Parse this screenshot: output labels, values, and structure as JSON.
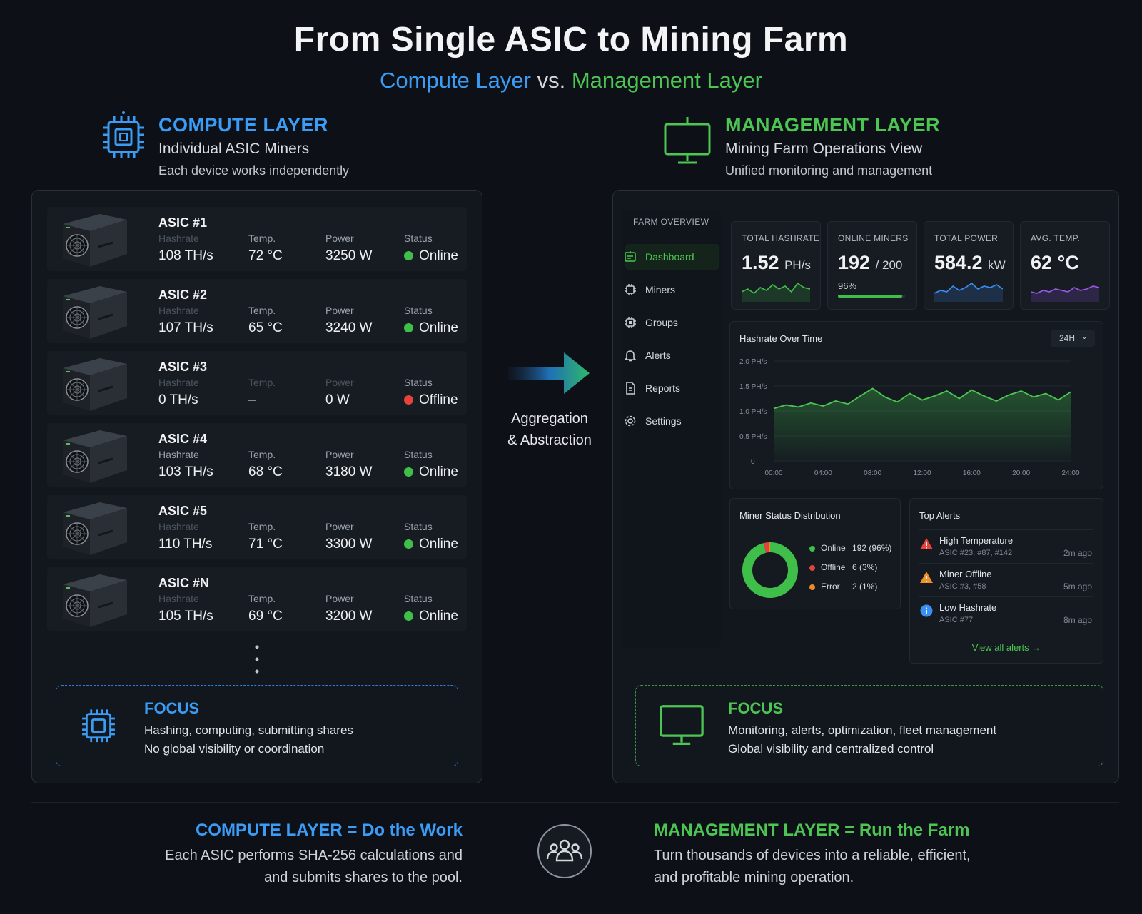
{
  "header": {
    "title": "From Single ASIC to Mining Farm",
    "subtitle_compute": "Compute Layer",
    "subtitle_vs": " vs. ",
    "subtitle_management": "Management Layer"
  },
  "compute": {
    "title": "COMPUTE LAYER",
    "subtitle": "Individual ASIC Miners",
    "description": "Each device works independently",
    "miners": [
      {
        "name": "ASIC #1",
        "hashrate_label": "Hashrate",
        "hashrate": "108 TH/s",
        "temp_label": "Temp.",
        "temp": "72 °C",
        "power_label": "Power",
        "power": "3250 W",
        "status_label": "Status",
        "status": "Online"
      },
      {
        "name": "ASIC #2",
        "hashrate_label": "Hashrate",
        "hashrate": "107 TH/s",
        "temp_label": "Temp.",
        "temp": "65 °C",
        "power_label": "Power",
        "power": "3240 W",
        "status_label": "Status",
        "status": "Online"
      },
      {
        "name": "ASIC #3",
        "hashrate_label": "Hashrate",
        "hashrate": "0 TH/s",
        "temp_label": "Temp.",
        "temp": "–",
        "power_label": "Power",
        "power": "0 W",
        "status_label": "Status",
        "status": "Offline"
      },
      {
        "name": "ASIC #4",
        "hashrate_label": "Hashrate",
        "hashrate": "103 TH/s",
        "temp_label": "Temp.",
        "temp": "68 °C",
        "power_label": "Power",
        "power": "3180 W",
        "status_label": "Status",
        "status": "Online"
      },
      {
        "name": "ASIC #5",
        "hashrate_label": "Hashrate",
        "hashrate": "110 TH/s",
        "temp_label": "Temp.",
        "temp": "71 °C",
        "power_label": "Power",
        "power": "3300 W",
        "status_label": "Status",
        "status": "Online"
      },
      {
        "name": "ASIC #N",
        "hashrate_label": "Hashrate",
        "hashrate": "105 TH/s",
        "temp_label": "Temp.",
        "temp": "69 °C",
        "power_label": "Power",
        "power": "3200 W",
        "status_label": "Status",
        "status": "Online"
      }
    ],
    "focus": {
      "title": "FOCUS",
      "line1": "Hashing, computing, submitting shares",
      "line2": "No global visibility or coordination"
    }
  },
  "arrow": {
    "line1": "Aggregation",
    "line2": "& Abstraction"
  },
  "management": {
    "title": "MANAGEMENT LAYER",
    "subtitle": "Mining Farm Operations View",
    "description": "Unified monitoring and management",
    "dashboard": {
      "nav_heading": "FARM OVERVIEW",
      "nav": [
        {
          "label": "Dashboard",
          "icon": "dashboard-icon",
          "active": true
        },
        {
          "label": "Miners",
          "icon": "chip-icon"
        },
        {
          "label": "Groups",
          "icon": "groups-icon"
        },
        {
          "label": "Alerts",
          "icon": "bell-icon"
        },
        {
          "label": "Reports",
          "icon": "report-icon"
        },
        {
          "label": "Settings",
          "icon": "gear-icon"
        }
      ],
      "kpis": [
        {
          "label": "TOTAL HASHRATE",
          "value": "1.52",
          "unit": "PH/s"
        },
        {
          "label": "ONLINE MINERS",
          "value": "192",
          "unit": "/ 200",
          "pct": "96%",
          "progress": 0.96
        },
        {
          "label": "TOTAL POWER",
          "value": "584.2",
          "unit": "kW"
        },
        {
          "label": "AVG. TEMP.",
          "value": "62 °C",
          "unit": ""
        }
      ],
      "hashrate_chart": {
        "title": "Hashrate Over Time",
        "range_select": "24H",
        "y_ticks": [
          "2.0 PH/s",
          "1.5 PH/s",
          "1.0 PH/s",
          "0.5 PH/s",
          "0"
        ],
        "x_ticks": [
          "00:00",
          "04:00",
          "08:00",
          "12:00",
          "16:00",
          "20:00",
          "24:00"
        ]
      },
      "status_dist": {
        "title": "Miner Status Distribution",
        "items": [
          {
            "label": "Online",
            "value": "192 (96%)",
            "color": "#3fbf4a"
          },
          {
            "label": "Offline",
            "value": "6 (3%)",
            "color": "#e0443c"
          },
          {
            "label": "Error",
            "value": "2 (1%)",
            "color": "#f08a24"
          }
        ]
      },
      "alerts": {
        "title": "Top Alerts",
        "items": [
          {
            "name": "High Temperature",
            "sub": "ASIC #23, #87, #142",
            "time": "2m ago",
            "icon": "warning-red-icon"
          },
          {
            "name": "Miner Offline",
            "sub": "ASIC #3, #58",
            "time": "5m ago",
            "icon": "warning-orange-icon"
          },
          {
            "name": "Low Hashrate",
            "sub": "ASIC #77",
            "time": "8m ago",
            "icon": "info-icon"
          }
        ],
        "view_all": "View all alerts →"
      }
    },
    "focus": {
      "title": "FOCUS",
      "line1": "Monitoring, alerts, optimization, fleet management",
      "line2": "Global visibility and centralized control"
    }
  },
  "bottom": {
    "compute_title": "COMPUTE LAYER = Do the Work",
    "compute_line1": "Each ASIC performs SHA-256 calculations and",
    "compute_line2": "and submits shares to the pool.",
    "management_title": "MANAGEMENT LAYER = Run the Farm",
    "management_line1": "Turn thousands of devices into a reliable, efficient,",
    "management_line2": "and profitable mining operation."
  },
  "chart_data": {
    "type": "area",
    "title": "Hashrate Over Time",
    "x": [
      "00:00",
      "01:00",
      "02:00",
      "03:00",
      "04:00",
      "05:00",
      "06:00",
      "07:00",
      "08:00",
      "09:00",
      "10:00",
      "11:00",
      "12:00",
      "13:00",
      "14:00",
      "15:00",
      "16:00",
      "17:00",
      "18:00",
      "19:00",
      "20:00",
      "21:00",
      "22:00",
      "23:00",
      "24:00"
    ],
    "values": [
      1.05,
      1.12,
      1.08,
      1.16,
      1.1,
      1.2,
      1.14,
      1.3,
      1.45,
      1.28,
      1.18,
      1.35,
      1.22,
      1.3,
      1.4,
      1.25,
      1.42,
      1.3,
      1.2,
      1.32,
      1.4,
      1.28,
      1.35,
      1.22,
      1.38
    ],
    "ylim": [
      0,
      2.0
    ],
    "grid": true
  }
}
